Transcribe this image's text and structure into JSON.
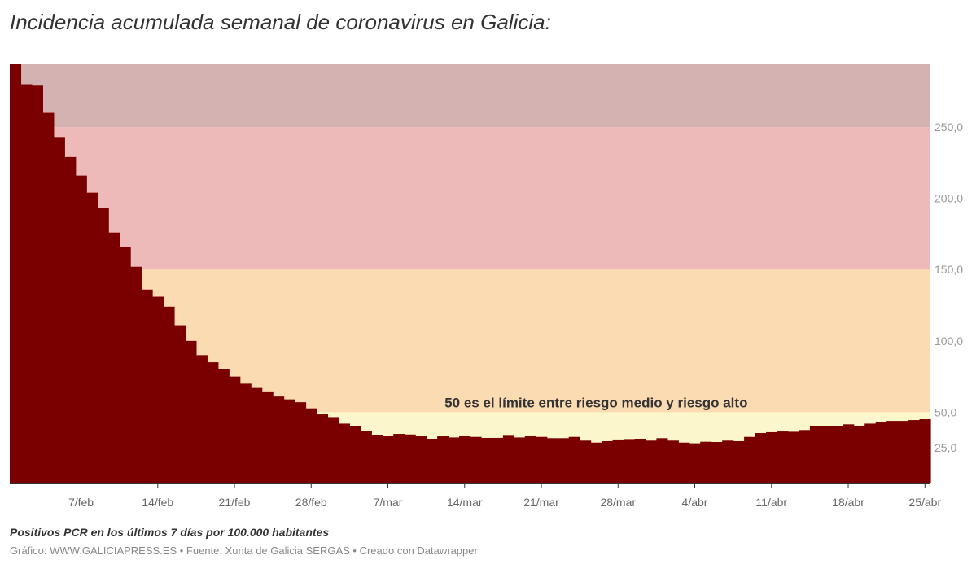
{
  "chart_data": {
    "type": "area",
    "subtype": "step",
    "title": "Incidencia acumulada semanal de coronavirus en Galicia:",
    "xlabel": "",
    "ylabel": "",
    "x_start": "1/feb",
    "x_end": "25/abr",
    "ylim": [
      0,
      294
    ],
    "grid": false,
    "color": "#7a0000",
    "x_ticks": [
      "7/feb",
      "14/feb",
      "21/feb",
      "28/feb",
      "7/mar",
      "14/mar",
      "21/mar",
      "28/mar",
      "4/abr",
      "11/abr",
      "18/abr",
      "25/abr"
    ],
    "y_ticks": [
      {
        "value": 25,
        "label": "25,0"
      },
      {
        "value": 50,
        "label": "50,0"
      },
      {
        "value": 100,
        "label": "100,0"
      },
      {
        "value": 150,
        "label": "150,0"
      },
      {
        "value": 200,
        "label": "200,0"
      },
      {
        "value": 250,
        "label": "250,0"
      }
    ],
    "bands": [
      {
        "from": 0,
        "to": 50,
        "color": "#fbf7cb"
      },
      {
        "from": 50,
        "to": 150,
        "color": "#fbdbb2"
      },
      {
        "from": 150,
        "to": 250,
        "color": "#edb9b9"
      },
      {
        "from": 250,
        "to": 294,
        "color": "#d4b2b1"
      }
    ],
    "annotation": {
      "text": "50 es el límite entre riesgo medio y riesgo alto",
      "value": 50,
      "date_index": 53
    },
    "values": [
      294,
      280,
      279,
      260,
      243,
      229,
      216,
      204,
      193,
      176,
      166,
      152,
      136,
      131,
      124,
      111,
      100,
      90,
      85,
      80,
      75,
      70,
      67,
      64,
      61,
      59,
      57,
      52.7,
      48.5,
      46.0,
      42.0,
      40.3,
      36.9,
      34.1,
      33.1,
      34.8,
      34.4,
      33.1,
      31.4,
      33.1,
      32.3,
      33.1,
      32.7,
      32.0,
      32.0,
      33.5,
      32.3,
      33.1,
      32.7,
      31.8,
      31.8,
      32.7,
      30.1,
      28.7,
      29.7,
      30.3,
      30.6,
      31.4,
      30.1,
      31.8,
      30.1,
      28.7,
      28.2,
      29.3,
      29.1,
      30.1,
      29.7,
      32.7,
      35.4,
      36.0,
      36.5,
      36.3,
      37.5,
      40.3,
      40.1,
      40.5,
      41.5,
      40.3,
      42.0,
      42.8,
      43.9,
      43.9,
      44.5,
      45.1
    ]
  },
  "footer": {
    "note": "Positivos PCR en los últimos 7 días por 100.000 habitantes",
    "credit": "Gráfico: WWW.GALICIAPRESS.ES • Fuente: Xunta de Galicia SERGAS • Creado con Datawrapper"
  }
}
